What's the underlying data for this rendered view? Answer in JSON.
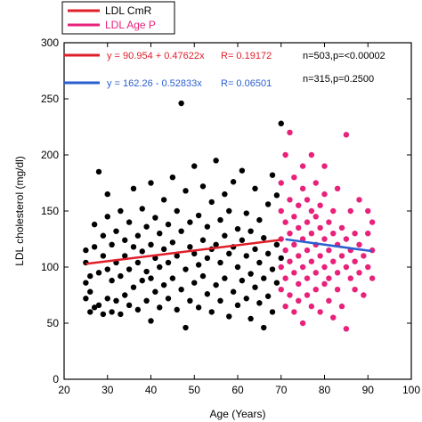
{
  "chart_data": {
    "type": "scatter",
    "xlabel": "Age (Years)",
    "ylabel": "LDL cholesterol (mg/dl)",
    "xlim": [
      20,
      100
    ],
    "ylim": [
      0,
      300
    ],
    "xticks": [
      "20",
      "30",
      "40",
      "50",
      "60",
      "70",
      "80",
      "90",
      "100"
    ],
    "yticks": [
      "0",
      "50",
      "100",
      "150",
      "200",
      "250",
      "300"
    ],
    "grid": false,
    "legend_position": "top-left",
    "legend": [
      {
        "label": "LDL CmR",
        "color": "#e01f2a"
      },
      {
        "label": "LDL Age P",
        "color": "#e8217a"
      }
    ],
    "series": [
      {
        "name": "LDL CmR",
        "color": "#000000",
        "x_range": [
          25,
          70
        ],
        "points": [
          [
            25,
            72
          ],
          [
            25,
            86
          ],
          [
            25,
            104
          ],
          [
            25,
            115
          ],
          [
            26,
            60
          ],
          [
            26,
            78
          ],
          [
            26,
            92
          ],
          [
            27,
            64
          ],
          [
            27,
            118
          ],
          [
            27,
            138
          ],
          [
            28,
            66
          ],
          [
            28,
            95
          ],
          [
            28,
            185
          ],
          [
            29,
            58
          ],
          [
            29,
            110
          ],
          [
            29,
            128
          ],
          [
            30,
            72
          ],
          [
            30,
            98
          ],
          [
            30,
            145
          ],
          [
            30,
            165
          ],
          [
            31,
            60
          ],
          [
            31,
            88
          ],
          [
            31,
            120
          ],
          [
            32,
            70
          ],
          [
            32,
            104
          ],
          [
            32,
            132
          ],
          [
            33,
            58
          ],
          [
            33,
            92
          ],
          [
            33,
            150
          ],
          [
            34,
            75
          ],
          [
            34,
            110
          ],
          [
            34,
            124
          ],
          [
            35,
            66
          ],
          [
            35,
            98
          ],
          [
            35,
            140
          ],
          [
            36,
            82
          ],
          [
            36,
            118
          ],
          [
            36,
            170
          ],
          [
            37,
            62
          ],
          [
            37,
            104
          ],
          [
            37,
            128
          ],
          [
            38,
            88
          ],
          [
            38,
            114
          ],
          [
            38,
            152
          ],
          [
            39,
            70
          ],
          [
            39,
            96
          ],
          [
            39,
            136
          ],
          [
            40,
            52
          ],
          [
            40,
            90
          ],
          [
            40,
            120
          ],
          [
            40,
            175
          ],
          [
            41,
            78
          ],
          [
            41,
            108
          ],
          [
            41,
            144
          ],
          [
            42,
            64
          ],
          [
            42,
            100
          ],
          [
            42,
            130
          ],
          [
            43,
            84
          ],
          [
            43,
            116
          ],
          [
            43,
            160
          ],
          [
            44,
            72
          ],
          [
            44,
            104
          ],
          [
            44,
            138
          ],
          [
            45,
            90
          ],
          [
            45,
            122
          ],
          [
            45,
            180
          ],
          [
            46,
            62
          ],
          [
            46,
            110
          ],
          [
            46,
            150
          ],
          [
            47,
            246
          ],
          [
            47,
            80
          ],
          [
            47,
            132
          ],
          [
            48,
            46
          ],
          [
            48,
            98
          ],
          [
            48,
            168
          ],
          [
            49,
            70
          ],
          [
            49,
            118
          ],
          [
            49,
            140
          ],
          [
            50,
            86
          ],
          [
            50,
            112
          ],
          [
            50,
            190
          ],
          [
            51,
            64
          ],
          [
            51,
            102
          ],
          [
            51,
            146
          ],
          [
            52,
            92
          ],
          [
            52,
            124
          ],
          [
            52,
            172
          ],
          [
            53,
            76
          ],
          [
            53,
            108
          ],
          [
            53,
            136
          ],
          [
            54,
            60
          ],
          [
            54,
            116
          ],
          [
            54,
            158
          ],
          [
            55,
            84
          ],
          [
            55,
            120
          ],
          [
            55,
            195
          ],
          [
            56,
            70
          ],
          [
            56,
            104
          ],
          [
            56,
            142
          ],
          [
            57,
            90
          ],
          [
            57,
            128
          ],
          [
            57,
            165
          ],
          [
            58,
            56
          ],
          [
            58,
            112
          ],
          [
            58,
            150
          ],
          [
            59,
            78
          ],
          [
            59,
            118
          ],
          [
            59,
            176
          ],
          [
            60,
            66
          ],
          [
            60,
            100
          ],
          [
            60,
            134
          ],
          [
            61,
            88
          ],
          [
            61,
            124
          ],
          [
            61,
            186
          ],
          [
            62,
            72
          ],
          [
            62,
            110
          ],
          [
            62,
            148
          ],
          [
            63,
            54
          ],
          [
            63,
            94
          ],
          [
            63,
            132
          ],
          [
            64,
            82
          ],
          [
            64,
            116
          ],
          [
            64,
            170
          ],
          [
            65,
            68
          ],
          [
            65,
            104
          ],
          [
            65,
            142
          ],
          [
            66,
            90
          ],
          [
            66,
            126
          ],
          [
            66,
            46
          ],
          [
            67,
            74
          ],
          [
            67,
            112
          ],
          [
            67,
            156
          ],
          [
            68,
            60
          ],
          [
            68,
            98
          ],
          [
            68,
            182
          ],
          [
            69,
            86
          ],
          [
            69,
            120
          ],
          [
            69,
            164
          ],
          [
            70,
            228
          ],
          [
            70,
            108
          ]
        ]
      },
      {
        "name": "LDL Age P",
        "color": "#e8217a",
        "x_range": [
          70,
          91
        ],
        "points": [
          [
            70,
            80
          ],
          [
            70,
            100
          ],
          [
            70,
            125
          ],
          [
            70,
            150
          ],
          [
            70,
            175
          ],
          [
            71,
            90
          ],
          [
            71,
            115
          ],
          [
            71,
            140
          ],
          [
            71,
            200
          ],
          [
            71,
            65
          ],
          [
            72,
            105
          ],
          [
            72,
            130
          ],
          [
            72,
            160
          ],
          [
            72,
            75
          ],
          [
            72,
            220
          ],
          [
            73,
            95
          ],
          [
            73,
            120
          ],
          [
            73,
            145
          ],
          [
            73,
            180
          ],
          [
            73,
            60
          ],
          [
            74,
            110
          ],
          [
            74,
            135
          ],
          [
            74,
            155
          ],
          [
            74,
            85
          ],
          [
            74,
            70
          ],
          [
            75,
            100
          ],
          [
            75,
            125
          ],
          [
            75,
            170
          ],
          [
            75,
            190
          ],
          [
            75,
            50
          ],
          [
            76,
            90
          ],
          [
            76,
            115
          ],
          [
            76,
            140
          ],
          [
            76,
            160
          ],
          [
            76,
            75
          ],
          [
            77,
            105
          ],
          [
            77,
            130
          ],
          [
            77,
            150
          ],
          [
            77,
            65
          ],
          [
            77,
            200
          ],
          [
            78,
            95
          ],
          [
            78,
            120
          ],
          [
            78,
            145
          ],
          [
            78,
            80
          ],
          [
            78,
            175
          ],
          [
            79,
            110
          ],
          [
            79,
            135
          ],
          [
            79,
            60
          ],
          [
            79,
            155
          ],
          [
            80,
            100
          ],
          [
            80,
            125
          ],
          [
            80,
            85
          ],
          [
            80,
            165
          ],
          [
            80,
            190
          ],
          [
            81,
            90
          ],
          [
            81,
            115
          ],
          [
            81,
            140
          ],
          [
            81,
            70
          ],
          [
            82,
            105
          ],
          [
            82,
            130
          ],
          [
            82,
            150
          ],
          [
            82,
            55
          ],
          [
            83,
            95
          ],
          [
            83,
            120
          ],
          [
            83,
            80
          ],
          [
            83,
            170
          ],
          [
            84,
            110
          ],
          [
            84,
            135
          ],
          [
            84,
            65
          ],
          [
            85,
            218
          ],
          [
            85,
            100
          ],
          [
            85,
            125
          ],
          [
            85,
            45
          ],
          [
            86,
            90
          ],
          [
            86,
            115
          ],
          [
            86,
            150
          ],
          [
            87,
            105
          ],
          [
            87,
            80
          ],
          [
            87,
            130
          ],
          [
            88,
            95
          ],
          [
            88,
            120
          ],
          [
            88,
            160
          ],
          [
            89,
            110
          ],
          [
            89,
            75
          ],
          [
            90,
            100
          ],
          [
            90,
            150
          ],
          [
            90,
            130
          ],
          [
            91,
            90
          ],
          [
            91,
            115
          ],
          [
            91,
            140
          ]
        ]
      }
    ],
    "regression_lines": [
      {
        "name": "LDL CmR",
        "color": "#e01f2a",
        "x_start": 25,
        "x_end": 70,
        "intercept": 90.954,
        "slope": 0.47622,
        "equation": "y = 90.954 + 0.47622x",
        "r_text": "R= 0.19172",
        "stats_text": "n=503,p=<0.00002"
      },
      {
        "name": "LDL Age P",
        "color": "#2a5fd0",
        "x_start": 71,
        "x_end": 91,
        "intercept": 162.26,
        "slope": -0.52833,
        "equation": "y = 162.26 - 0.52833x",
        "r_text": "R= 0.06501",
        "stats_text": "n=315,p=0.2500"
      }
    ]
  }
}
